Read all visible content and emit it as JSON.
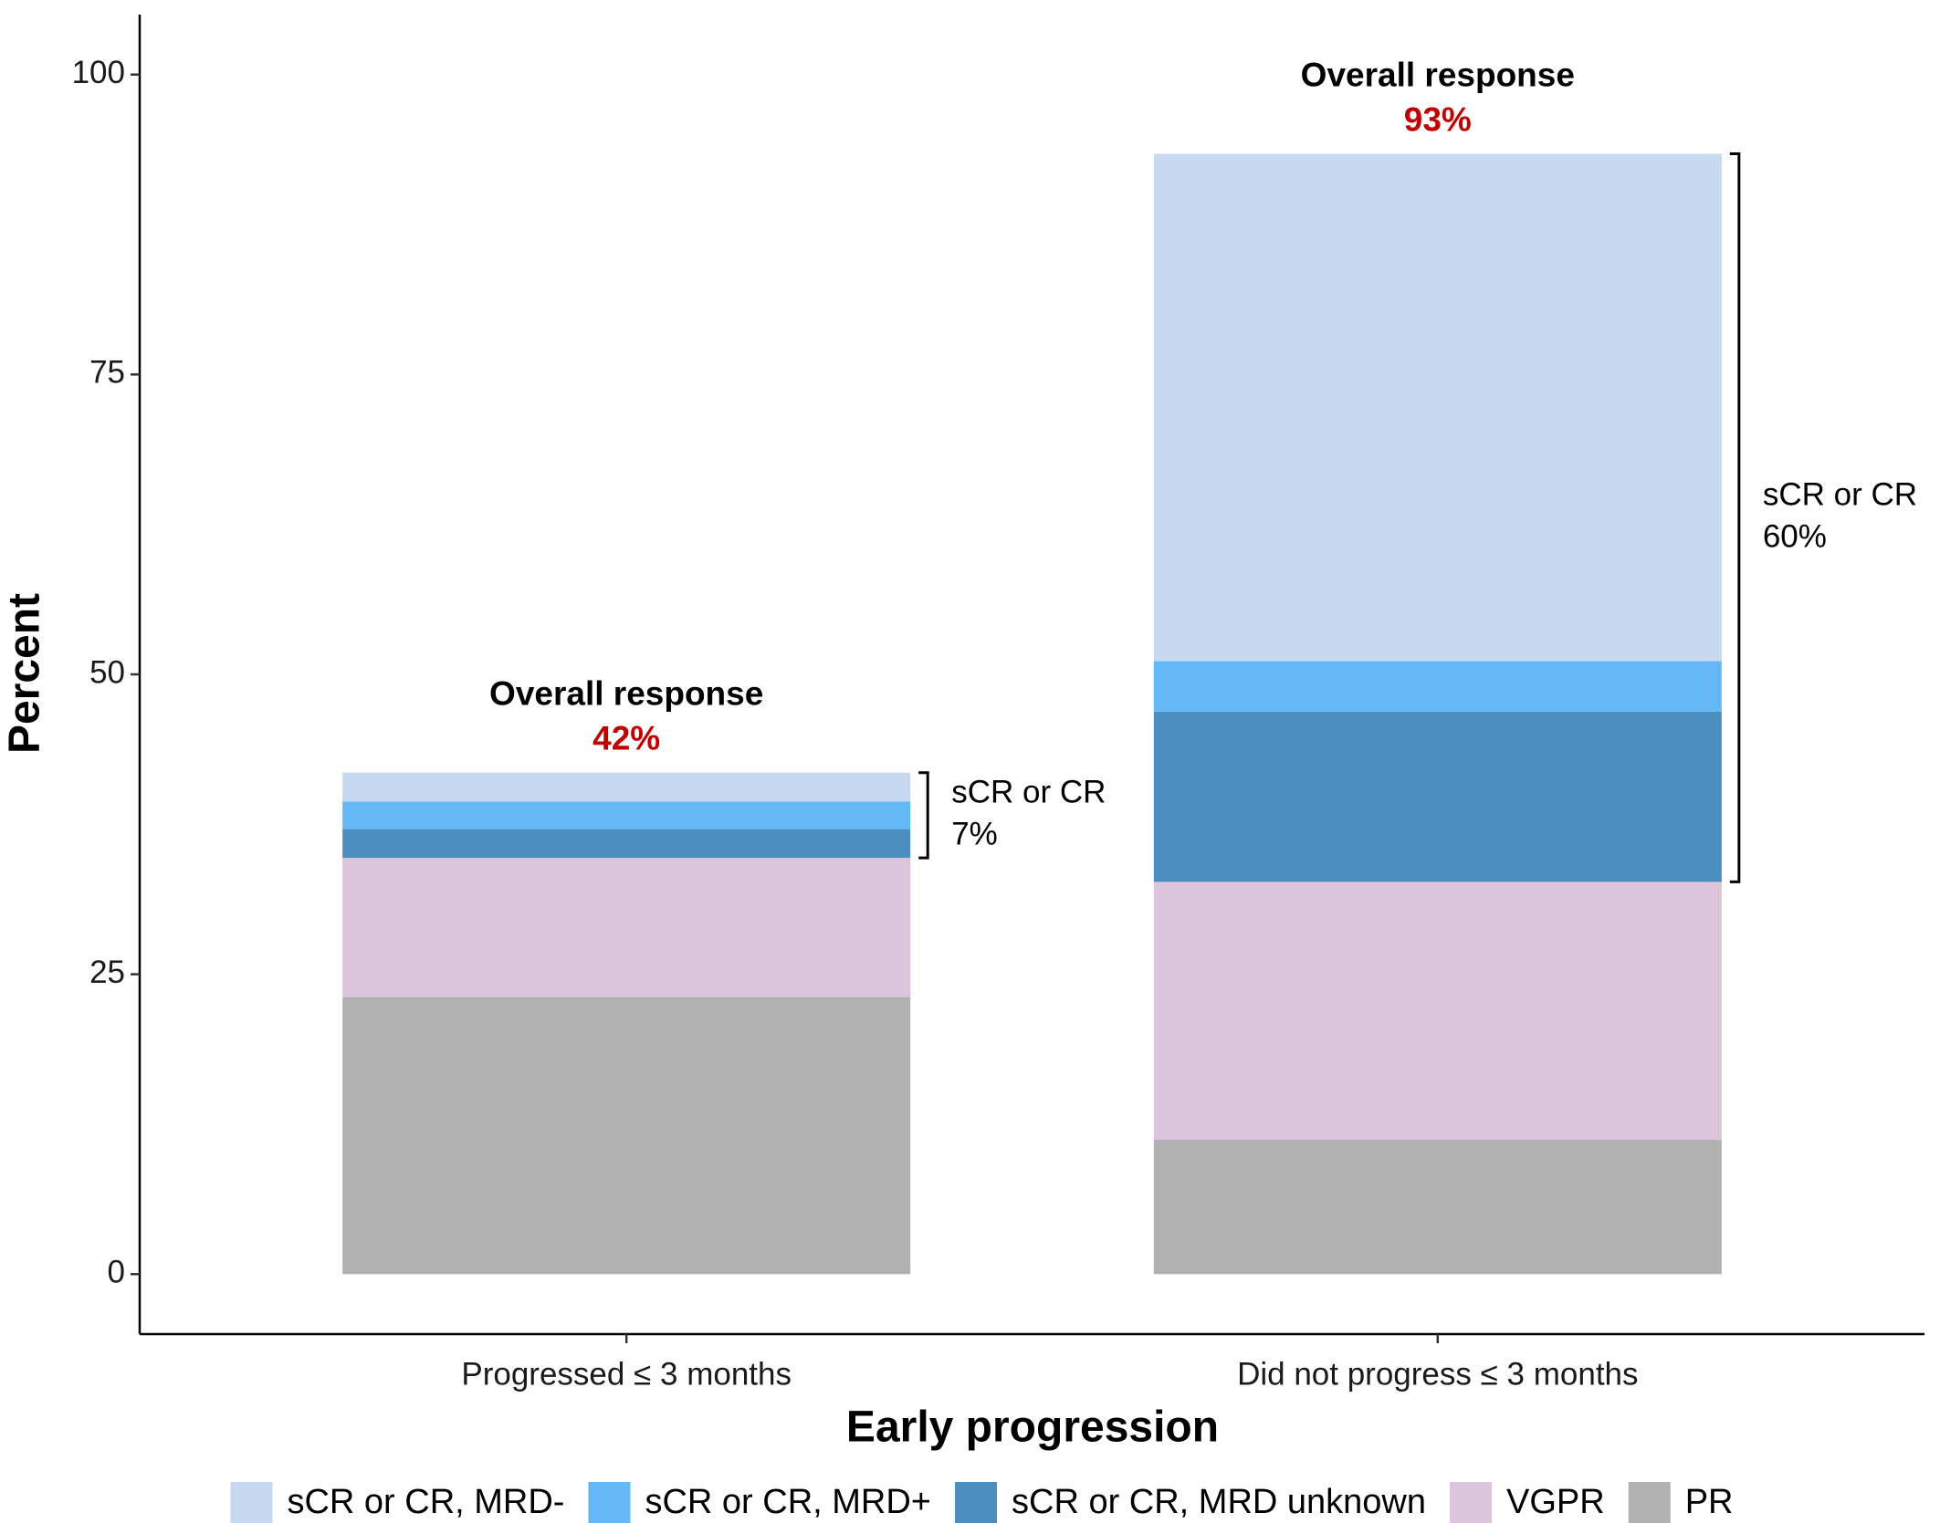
{
  "chart_data": {
    "type": "stacked_bar",
    "x_label": "Early progression",
    "y_label": "Percent",
    "categories": [
      "Progressed ≤ 3 months",
      "Did not progress ≤ 3 months"
    ],
    "series": [
      {
        "name": "sCR or CR, MRD-",
        "color": "#c6d9f1",
        "values": [
          2.4,
          42.3
        ]
      },
      {
        "name": "sCR or CR, MRD+",
        "color": "#63b8f5",
        "values": [
          2.3,
          4.2
        ]
      },
      {
        "name": "sCR or CR, MRD unknown",
        "color": "#4a8fbf",
        "values": [
          2.4,
          14.2
        ]
      },
      {
        "name": "VGPR",
        "color": "#dcc4db",
        "values": [
          11.6,
          21.5
        ]
      },
      {
        "name": "PR",
        "color": "#b1b1b1",
        "values": [
          23.1,
          11.2
        ]
      }
    ],
    "ylim": [
      -5,
      105
    ],
    "yticks": [
      0,
      25,
      50,
      75,
      100
    ],
    "annotations": [
      {
        "title": "Overall response",
        "total": "42%",
        "bracket_title": "sCR or CR",
        "bracket_total": "7%"
      },
      {
        "title": "Overall response",
        "total": "93%",
        "bracket_title": "sCR or CR",
        "bracket_total": "60%"
      }
    ],
    "legend": "bottom"
  }
}
